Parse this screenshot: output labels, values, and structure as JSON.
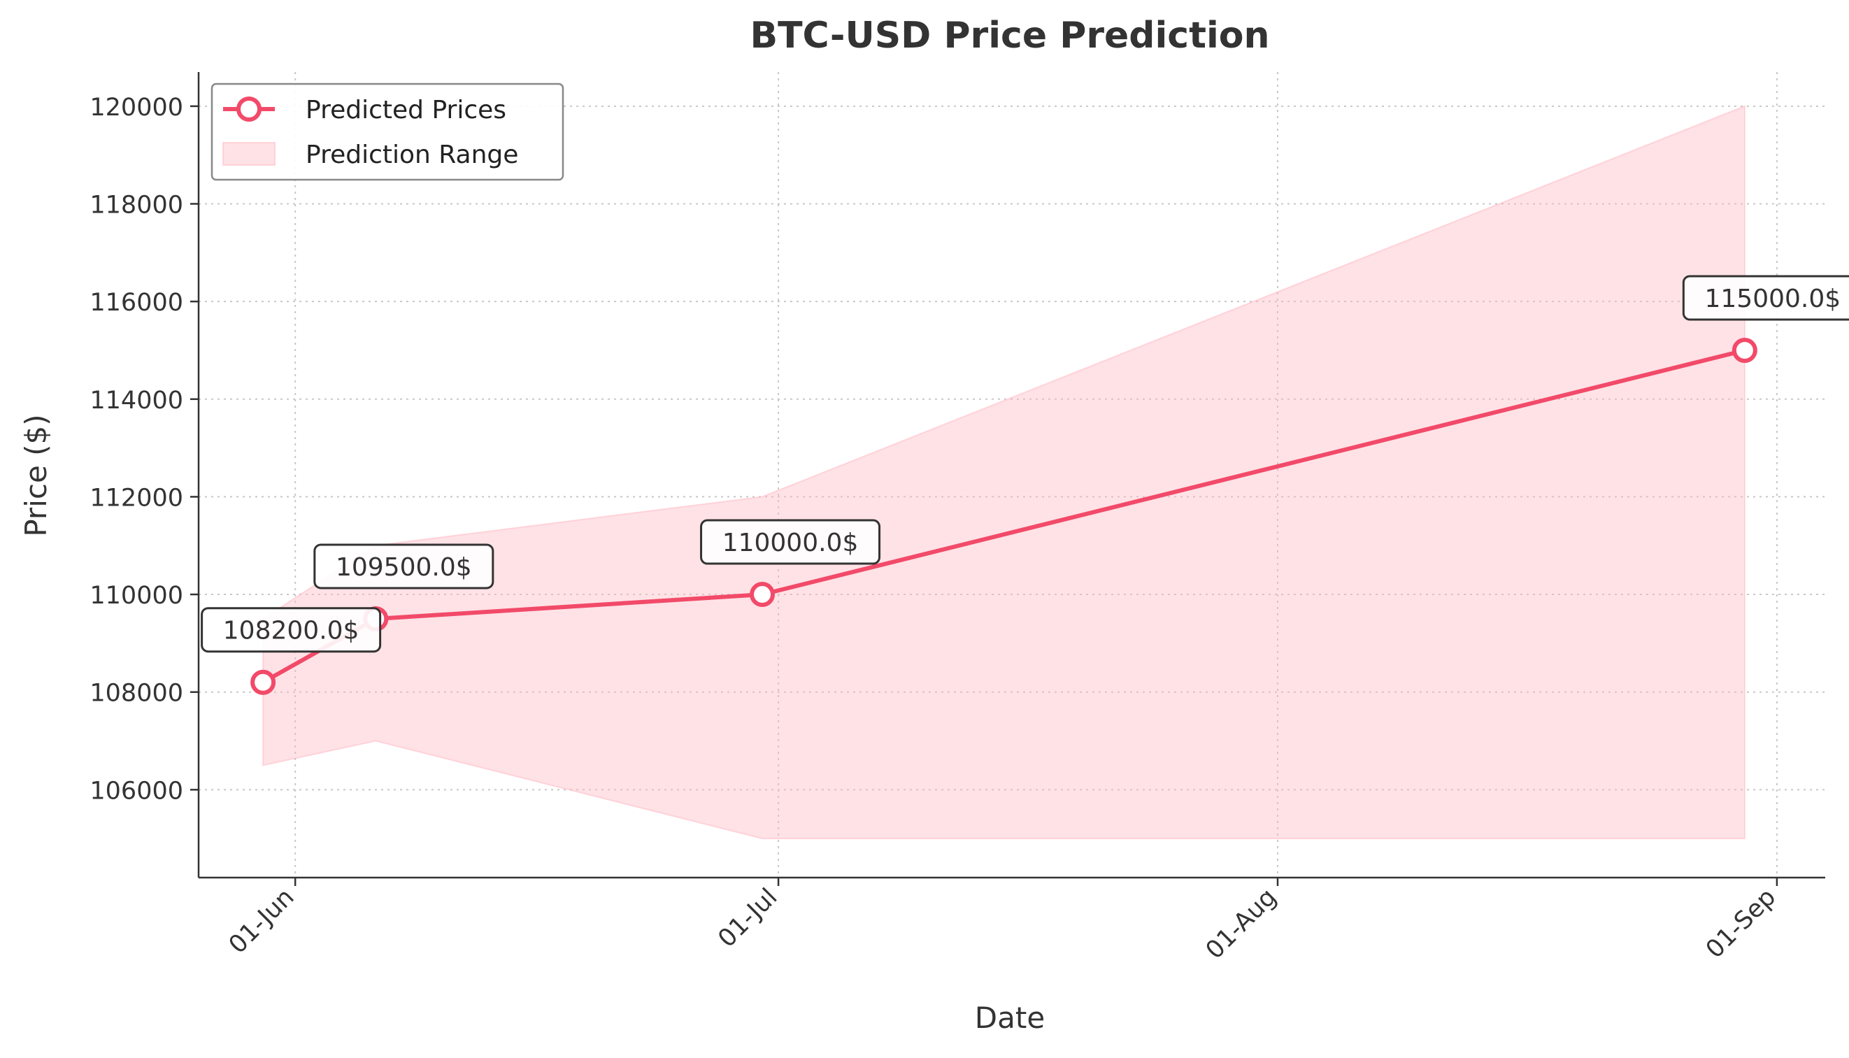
{
  "chart_data": {
    "type": "line",
    "title": "BTC-USD Price Prediction",
    "xlabel": "Date",
    "ylabel": "Price ($)",
    "x_axis": {
      "type": "date",
      "range": [
        "2025-05-26",
        "2025-09-04"
      ],
      "ticks": [
        {
          "date": "2025-06-01",
          "label": "01-Jun"
        },
        {
          "date": "2025-07-01",
          "label": "01-Jul"
        },
        {
          "date": "2025-08-01",
          "label": "01-Aug"
        },
        {
          "date": "2025-09-01",
          "label": "01-Sep"
        }
      ]
    },
    "y_axis": {
      "range": [
        104200,
        120700
      ],
      "ticks": [
        106000,
        108000,
        110000,
        112000,
        114000,
        116000,
        118000,
        120000
      ]
    },
    "grid": true,
    "legend_position": "top-left",
    "series": [
      {
        "name": "Predicted Prices",
        "kind": "line",
        "color": "#f24a69",
        "points": [
          {
            "x": "2025-05-30",
            "y": 108200,
            "label": "108200.0$"
          },
          {
            "x": "2025-06-06",
            "y": 109500,
            "label": "109500.0$"
          },
          {
            "x": "2025-06-30",
            "y": 110000,
            "label": "110000.0$"
          },
          {
            "x": "2025-08-30",
            "y": 115000,
            "label": "115000.0$"
          }
        ]
      },
      {
        "name": "Prediction Range",
        "kind": "band",
        "color": "#ffb6c1",
        "x": [
          "2025-05-30",
          "2025-06-06",
          "2025-06-30",
          "2025-08-30"
        ],
        "lower": [
          106500,
          107000,
          105000,
          105000
        ],
        "upper": [
          109500,
          111000,
          112000,
          120000
        ]
      }
    ]
  }
}
